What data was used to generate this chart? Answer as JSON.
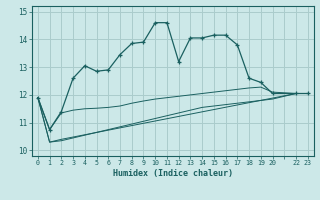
{
  "xlabel": "Humidex (Indice chaleur)",
  "bg_color": "#cce8e8",
  "grid_color": "#aacccc",
  "line_color": "#1a6060",
  "xlim": [
    -0.5,
    23.5
  ],
  "ylim": [
    9.8,
    15.2
  ],
  "yticks": [
    10,
    11,
    12,
    13,
    14,
    15
  ],
  "xtick_positions": [
    0,
    1,
    2,
    3,
    4,
    5,
    6,
    7,
    8,
    9,
    10,
    11,
    12,
    13,
    14,
    15,
    16,
    17,
    18,
    19,
    20,
    21,
    22,
    23
  ],
  "xtick_labels": [
    "0",
    "1",
    "2",
    "3",
    "4",
    "5",
    "6",
    "7",
    "8",
    "9",
    "10",
    "11",
    "12",
    "13",
    "14",
    "15",
    "16",
    "17",
    "18",
    "19",
    "20",
    "",
    "22",
    "23"
  ],
  "series1_x": [
    0,
    1,
    2,
    3,
    4,
    5,
    6,
    7,
    8,
    9,
    10,
    11,
    12,
    13,
    14,
    15,
    16,
    17,
    18,
    19,
    20,
    22,
    23
  ],
  "series1_y": [
    11.9,
    10.75,
    11.4,
    12.6,
    13.05,
    12.85,
    12.9,
    13.45,
    13.85,
    13.9,
    14.6,
    14.6,
    13.2,
    14.05,
    14.05,
    14.15,
    14.15,
    13.8,
    12.6,
    12.45,
    12.05,
    12.05,
    12.05
  ],
  "series2_x": [
    0,
    1,
    2,
    3,
    4,
    5,
    6,
    7,
    8,
    9,
    10,
    11,
    12,
    13,
    14,
    15,
    16,
    17,
    18,
    19,
    20,
    22,
    23
  ],
  "series2_y": [
    11.9,
    10.75,
    11.35,
    11.45,
    11.5,
    11.52,
    11.55,
    11.6,
    11.7,
    11.78,
    11.85,
    11.9,
    11.95,
    12.0,
    12.05,
    12.1,
    12.15,
    12.2,
    12.25,
    12.28,
    12.1,
    12.05,
    12.05
  ],
  "series3_x": [
    0,
    1,
    2,
    22,
    23
  ],
  "series3_y": [
    11.9,
    10.3,
    10.4,
    12.05,
    12.05
  ],
  "series4_x": [
    0,
    1,
    2,
    3,
    4,
    5,
    6,
    7,
    8,
    9,
    10,
    11,
    12,
    13,
    14,
    15,
    16,
    17,
    18,
    19,
    20,
    22,
    23
  ],
  "series4_y": [
    11.9,
    10.3,
    10.35,
    10.45,
    10.55,
    10.65,
    10.75,
    10.85,
    10.95,
    11.05,
    11.15,
    11.25,
    11.35,
    11.45,
    11.55,
    11.6,
    11.65,
    11.7,
    11.75,
    11.8,
    11.85,
    12.05,
    12.05
  ]
}
